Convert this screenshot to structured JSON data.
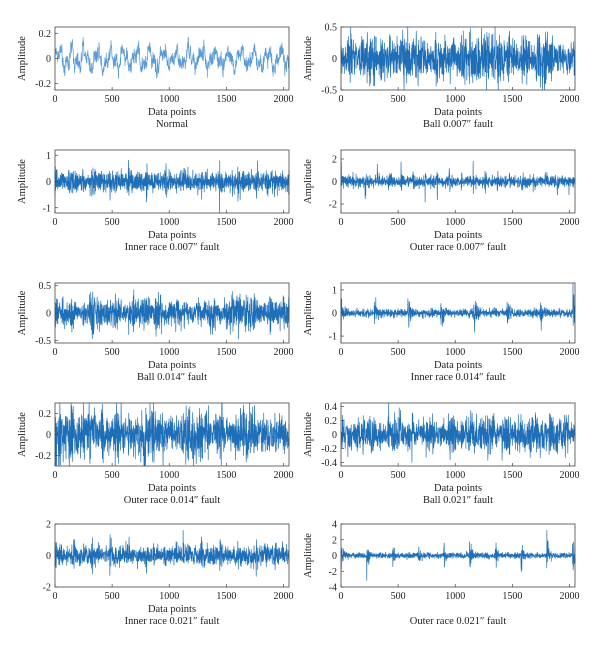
{
  "chart_data": [
    {
      "type": "line",
      "title": "Normal",
      "xlabel": "Data points",
      "ylabel": "Amplitude",
      "xlim": [
        0,
        2048
      ],
      "ylim": [
        -0.25,
        0.25
      ],
      "xticks": [
        0,
        500,
        1000,
        1500,
        2000
      ],
      "yticks": [
        -0.2,
        0,
        0.2
      ],
      "ytick_labels": [
        "-0.2",
        "0",
        "0.2"
      ],
      "signal": "normal",
      "amp": 0.11,
      "color": "#5b9bd5"
    },
    {
      "type": "line",
      "title": "Ball 0.007″ fault",
      "xlabel": "Data points",
      "ylabel": "Amplitude",
      "xlim": [
        0,
        2048
      ],
      "ylim": [
        -0.5,
        0.5
      ],
      "xticks": [
        0,
        500,
        1000,
        1500,
        2000
      ],
      "yticks": [
        -0.5,
        0,
        0.5
      ],
      "ytick_labels": [
        "-0.5",
        "0",
        "0.5"
      ],
      "signal": "noise",
      "amp": 0.22,
      "color": "#1f6fb8"
    },
    {
      "type": "line",
      "title": "Inner race 0.007″ fault",
      "xlabel": "Data points",
      "ylabel": "Amplitude",
      "xlim": [
        0,
        2048
      ],
      "ylim": [
        -1.2,
        1.2
      ],
      "xticks": [
        0,
        500,
        1000,
        1500,
        2000
      ],
      "yticks": [
        -1,
        0,
        1
      ],
      "ytick_labels": [
        "-1",
        "0",
        "1"
      ],
      "signal": "impulse",
      "amp": 0.28,
      "period": 160,
      "peak": 1.1,
      "color": "#1f6fb8"
    },
    {
      "type": "line",
      "title": "Outer race 0.007″ fault",
      "xlabel": "Data points",
      "ylabel": "Amplitude",
      "xlim": [
        0,
        2048
      ],
      "ylim": [
        -2.8,
        2.8
      ],
      "xticks": [
        0,
        500,
        1000,
        1500,
        2000
      ],
      "yticks": [
        -2,
        0,
        2
      ],
      "ytick_labels": [
        "-2",
        "0",
        "2"
      ],
      "signal": "impulse",
      "amp": 0.35,
      "period": 105,
      "peak": 2.1,
      "color": "#1f6fb8"
    },
    {
      "type": "line",
      "title": "Ball 0.014″ fault",
      "xlabel": "Data points",
      "ylabel": "Amplitude",
      "xlim": [
        0,
        2048
      ],
      "ylim": [
        -0.55,
        0.55
      ],
      "xticks": [
        0,
        500,
        1000,
        1500,
        2000
      ],
      "yticks": [
        -0.5,
        0,
        0.5
      ],
      "ytick_labels": [
        "-0.5",
        "0",
        "0.5"
      ],
      "signal": "noise",
      "amp": 0.17,
      "color": "#1f6fb8"
    },
    {
      "type": "line",
      "title": "Inner race 0.014″ fault",
      "xlabel": "Data points",
      "ylabel": "Amplitude",
      "xlim": [
        0,
        2048
      ],
      "ylim": [
        -1.3,
        1.3
      ],
      "xticks": [
        0,
        500,
        1000,
        1500,
        2000
      ],
      "yticks": [
        -1,
        0,
        1
      ],
      "ytick_labels": [
        "-1",
        "0",
        "1"
      ],
      "signal": "impulse",
      "amp": 0.12,
      "period": 290,
      "peak": 1.15,
      "color": "#1f6fb8"
    },
    {
      "type": "line",
      "title": "Outer race 0.014″ fault",
      "xlabel": "Data points",
      "ylabel": "Amplitude",
      "xlim": [
        0,
        2048
      ],
      "ylim": [
        -0.3,
        0.3
      ],
      "xticks": [
        0,
        500,
        1000,
        1500,
        2000
      ],
      "yticks": [
        -0.2,
        0,
        0.2
      ],
      "ytick_labels": [
        "-0.2",
        "0",
        "0.2"
      ],
      "signal": "noise",
      "amp": 0.14,
      "color": "#1f6fb8"
    },
    {
      "type": "line",
      "title": "Ball 0.021″ fault",
      "xlabel": "Data points",
      "ylabel": "Amplitude",
      "xlim": [
        0,
        2048
      ],
      "ylim": [
        -0.45,
        0.45
      ],
      "xticks": [
        0,
        500,
        1000,
        1500,
        2000
      ],
      "yticks": [
        -0.4,
        -0.2,
        0,
        0.2,
        0.4
      ],
      "ytick_labels": [
        "-0.4",
        "-0.2",
        "0",
        "0.2",
        "0.4"
      ],
      "signal": "noise",
      "amp": 0.15,
      "color": "#1f6fb8"
    },
    {
      "type": "line",
      "title": "Inner race 0.021″ fault",
      "xlabel": "Data points",
      "ylabel": "",
      "xlim": [
        0,
        2048
      ],
      "ylim": [
        -2,
        2
      ],
      "xticks": [
        0,
        500,
        1000,
        1500,
        2000
      ],
      "yticks": [
        -2,
        0,
        2
      ],
      "ytick_labels": [
        "-2",
        "0",
        "2"
      ],
      "signal": "impulse",
      "amp": 0.45,
      "period": 160,
      "peak": 1.9,
      "color": "#1f6fb8"
    },
    {
      "type": "line",
      "title": "Outer race 0.021″ fault",
      "xlabel": "",
      "ylabel": "Amplitude",
      "xlim": [
        0,
        2048
      ],
      "ylim": [
        -4,
        4
      ],
      "xticks": [
        0,
        500,
        1000,
        1500,
        2000
      ],
      "yticks": [
        -4,
        -2,
        0,
        2,
        4
      ],
      "ytick_labels": [
        "-4",
        "-2",
        "0",
        "2",
        "4"
      ],
      "signal": "impulse",
      "amp": 0.25,
      "period": 225,
      "peak": 3.3,
      "color": "#1f6fb8"
    }
  ]
}
